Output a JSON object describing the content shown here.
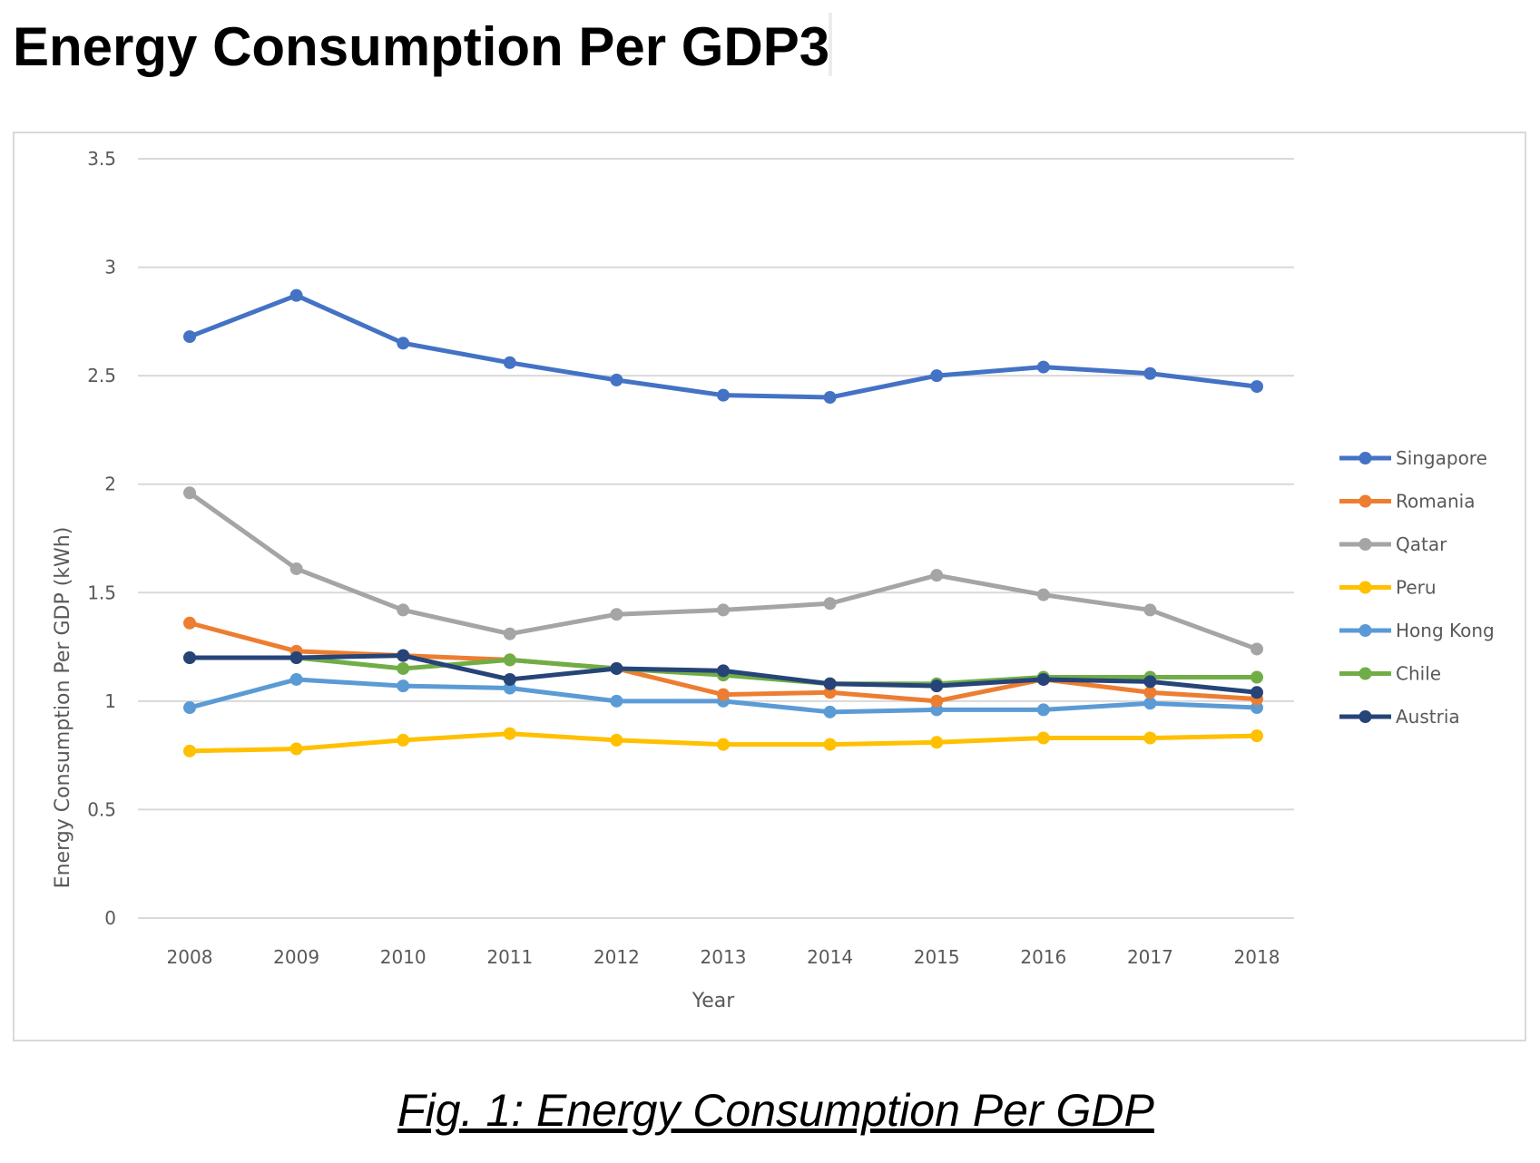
{
  "heading": "Energy Consumption Per GDP3",
  "caption": "Fig. 1: Energy Consumption Per GDP",
  "chart_data": {
    "type": "line",
    "title": "",
    "xlabel": "Year",
    "ylabel": "Energy Consumption Per GDP (kWh)",
    "x": [
      "2008",
      "2009",
      "2010",
      "2011",
      "2012",
      "2013",
      "2014",
      "2015",
      "2016",
      "2017",
      "2018"
    ],
    "ylim": [
      0,
      3.5
    ],
    "yticks": [
      "0",
      "0.5",
      "1",
      "1.5",
      "2",
      "2.5",
      "3",
      "3.5"
    ],
    "grid": true,
    "legend": "right",
    "series": [
      {
        "name": "Singapore",
        "color": "#4472c4",
        "values": [
          2.68,
          2.87,
          2.65,
          2.56,
          2.48,
          2.41,
          2.4,
          2.5,
          2.54,
          2.51,
          2.45
        ]
      },
      {
        "name": "Romania",
        "color": "#ed7d31",
        "values": [
          1.36,
          1.23,
          1.21,
          1.19,
          1.15,
          1.03,
          1.04,
          1.0,
          1.1,
          1.04,
          1.01
        ]
      },
      {
        "name": "Qatar",
        "color": "#a5a5a5",
        "values": [
          1.96,
          1.61,
          1.42,
          1.31,
          1.4,
          1.42,
          1.45,
          1.58,
          1.49,
          1.42,
          1.24
        ]
      },
      {
        "name": "Peru",
        "color": "#ffc000",
        "values": [
          0.77,
          0.78,
          0.82,
          0.85,
          0.82,
          0.8,
          0.8,
          0.81,
          0.83,
          0.83,
          0.84
        ]
      },
      {
        "name": "Hong Kong",
        "color": "#5b9bd5",
        "values": [
          0.97,
          1.1,
          1.07,
          1.06,
          1.0,
          1.0,
          0.95,
          0.96,
          0.96,
          0.99,
          0.97
        ]
      },
      {
        "name": "Chile",
        "color": "#70ad47",
        "values": [
          1.2,
          1.2,
          1.15,
          1.19,
          1.15,
          1.12,
          1.08,
          1.08,
          1.11,
          1.11,
          1.11
        ]
      },
      {
        "name": "Austria",
        "color": "#264478",
        "values": [
          1.2,
          1.2,
          1.21,
          1.1,
          1.15,
          1.14,
          1.08,
          1.07,
          1.1,
          1.09,
          1.04
        ]
      }
    ]
  }
}
